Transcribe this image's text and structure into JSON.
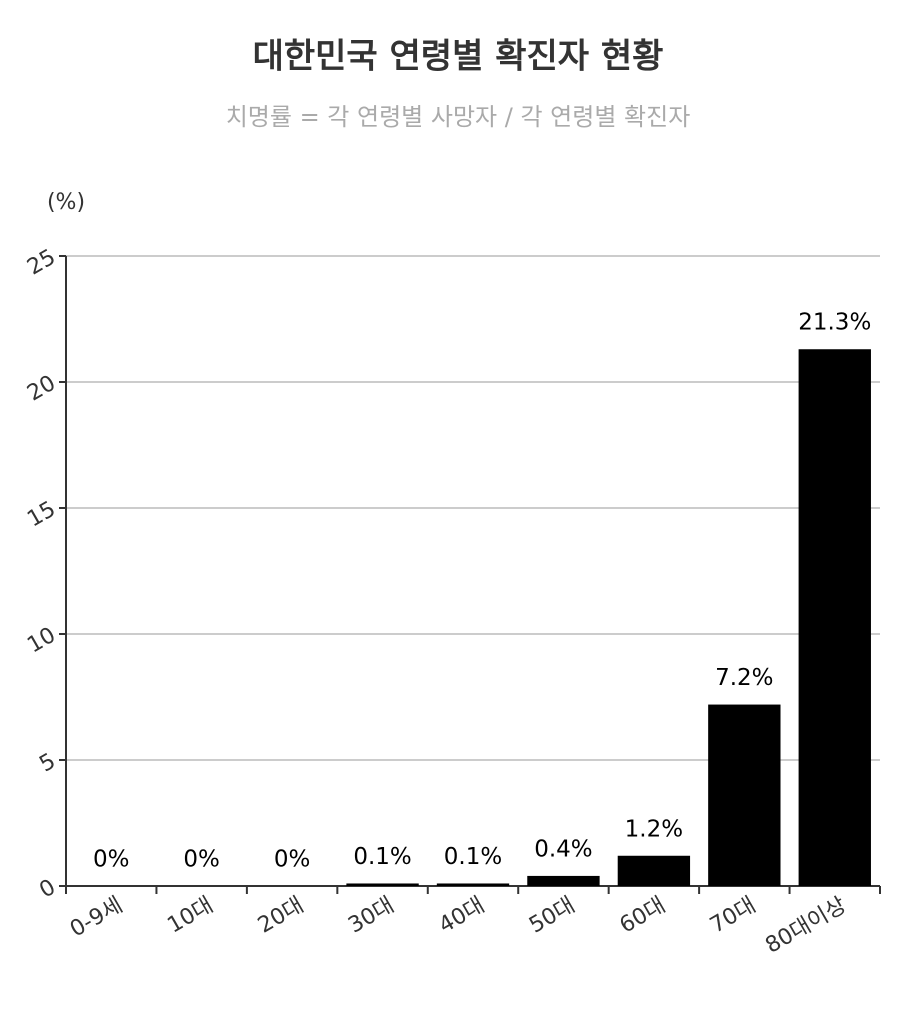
{
  "chart_data": {
    "type": "bar",
    "title": "대한민국 연령별 확진자 현황",
    "subtitle": "치명률 = 각 연령별 사망자 / 각 연령별 확진자",
    "y_label": "(%)",
    "categories": [
      "0-9세",
      "10대",
      "20대",
      "30대",
      "40대",
      "50대",
      "60대",
      "70대",
      "80대이상"
    ],
    "values": [
      0,
      0,
      0,
      0.1,
      0.1,
      0.4,
      1.2,
      7.2,
      21.3
    ],
    "value_labels": [
      "0%",
      "0%",
      "0%",
      "0.1%",
      "0.1%",
      "0.4%",
      "1.2%",
      "7.2%",
      "21.3%"
    ],
    "color": "#000000",
    "ylim": [
      0,
      25
    ],
    "yticks": [
      0,
      5,
      10,
      15,
      20,
      25
    ],
    "grid": true
  }
}
